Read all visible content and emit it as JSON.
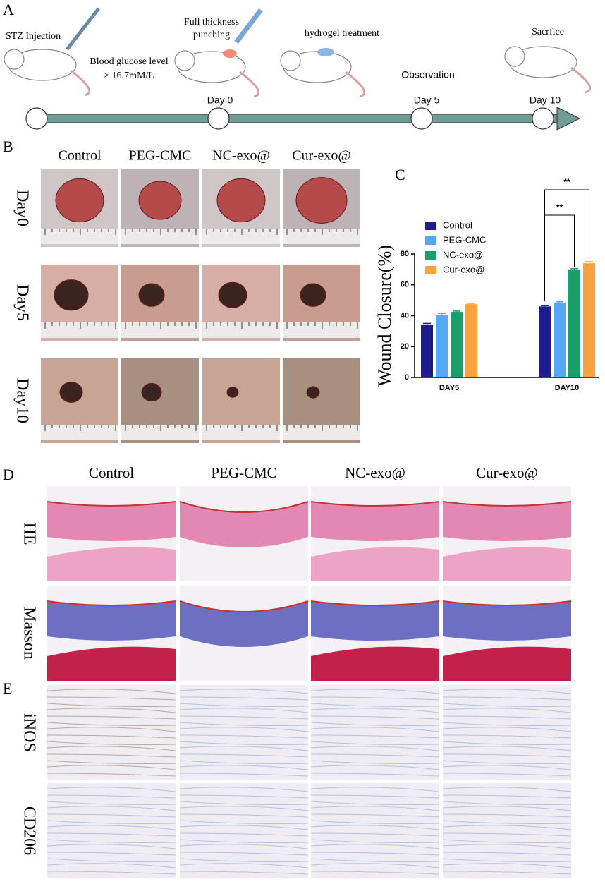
{
  "panel_labels": [
    "A",
    "B",
    "C",
    "D",
    "E"
  ],
  "timeline": {
    "injection": "STZ Injection",
    "glucose": [
      "Blood glucose level",
      "> 16.7mM/L"
    ],
    "punch": [
      "Full thickness",
      "punching"
    ],
    "treatment": "hydrogel treatment",
    "observation": "Observation",
    "sacrifice": "Sacrfice",
    "days": [
      "Day 0",
      "Day 5",
      "Day 10"
    ]
  },
  "photos": {
    "groups": [
      "Control",
      "PEG-CMC",
      "NC-exo@",
      "Cur-exo@"
    ],
    "days": [
      "Day0",
      "Day5",
      "Day10"
    ]
  },
  "histology": {
    "groups": [
      "Control",
      "PEG-CMC",
      "NC-exo@",
      "Cur-exo@"
    ],
    "stains": [
      "HE",
      "Masson"
    ],
    "markers": [
      "iNOS",
      "CD206"
    ]
  },
  "chart_data": {
    "type": "bar",
    "ylabel": "Wound Closure(%)",
    "categories": [
      "DAY5",
      "DAY10"
    ],
    "series": [
      {
        "name": "Control",
        "color": "#1c1c8c",
        "values": [
          34,
          46
        ],
        "errors": [
          1,
          0.5
        ]
      },
      {
        "name": "PEG-CMC",
        "color": "#55a8f5",
        "values": [
          40.5,
          48.5
        ],
        "errors": [
          1,
          0.5
        ]
      },
      {
        "name": "NC-exo@",
        "color": "#1a9e6a",
        "values": [
          42.5,
          70
        ],
        "errors": [
          0.5,
          0.5
        ]
      },
      {
        "name": "Cur-exo@",
        "color": "#fba13e",
        "values": [
          47.5,
          74
        ],
        "errors": [
          0.5,
          1
        ]
      }
    ],
    "ylim": [
      0,
      80
    ],
    "yticks": [
      0,
      20,
      40,
      60,
      80
    ],
    "significance": [
      "**",
      "**"
    ]
  }
}
